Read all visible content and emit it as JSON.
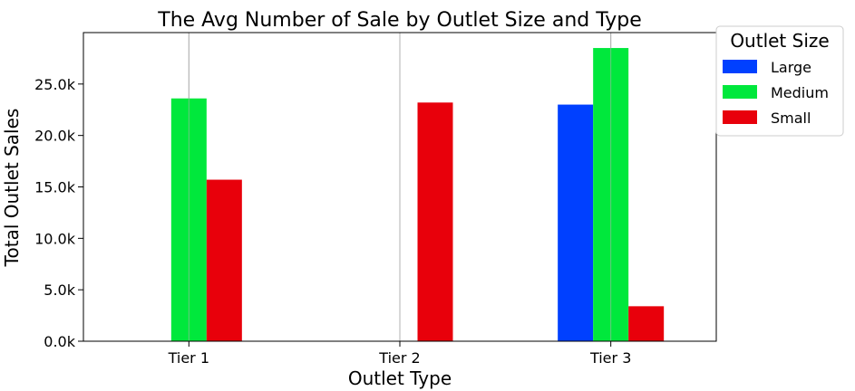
{
  "chart_data": {
    "type": "bar",
    "title": "The Avg Number of Sale by Outlet Size and Type",
    "xlabel": "Outlet Type",
    "ylabel": "Total Outlet Sales",
    "categories": [
      "Tier 1",
      "Tier 2",
      "Tier 3"
    ],
    "series": [
      {
        "name": "Large",
        "color": "#0040ff",
        "values": [
          0,
          0,
          23000
        ]
      },
      {
        "name": "Medium",
        "color": "#00e83c",
        "values": [
          23600,
          0,
          28500
        ]
      },
      {
        "name": "Small",
        "color": "#e8000b",
        "values": [
          15700,
          23200,
          3400
        ]
      }
    ],
    "ylim": [
      0,
      30000
    ],
    "yticks": [
      0,
      5000,
      10000,
      15000,
      20000,
      25000
    ],
    "ytick_labels": [
      "0.0k",
      "5.0k",
      "10.0k",
      "15.0k",
      "20.0k",
      "25.0k"
    ],
    "grid": "x",
    "legend": {
      "title": "Outlet Size",
      "placement": "outside-top-right"
    }
  }
}
